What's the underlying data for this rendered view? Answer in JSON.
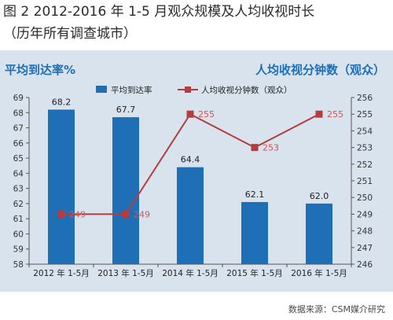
{
  "header": {
    "title": "图 2   2012-2016 年 1-5 月观众规模及人均收视时长",
    "subtitle": "（历年所有调查城市）"
  },
  "source": "数据来源：CSM媒介研究",
  "colors": {
    "bar": "#1f6fb7",
    "line": "#b53d3d",
    "label_line": "#d9534f",
    "panel": "#d8e3ee"
  },
  "chart_data": {
    "type": "bar",
    "categories": [
      "2012 年 1-5月",
      "2013 年 1-5月",
      "2014 年 1-5月",
      "2015 年 1-5月",
      "2016 年 1-5月"
    ],
    "ylabel": "平均到达率%",
    "y2label": "人均收视分钟数（观众）",
    "ylim": [
      58,
      69
    ],
    "y2lim": [
      246,
      256
    ],
    "yticks": [
      58,
      59,
      60,
      61,
      62,
      63,
      64,
      65,
      66,
      67,
      68,
      69
    ],
    "y2ticks": [
      246,
      247,
      248,
      249,
      250,
      251,
      252,
      253,
      254,
      255,
      256
    ],
    "series": [
      {
        "name": "平均到达率",
        "type": "bar",
        "axis": "left",
        "values": [
          68.2,
          67.7,
          64.4,
          62.1,
          62.0
        ],
        "labels": [
          "68.2",
          "67.7",
          "64.4",
          "62.1",
          "62.0"
        ]
      },
      {
        "name": "人均收视分钟数（观众）",
        "type": "line",
        "axis": "right",
        "values": [
          249,
          249,
          255,
          253,
          255
        ],
        "labels": [
          "249",
          "249",
          "255",
          "253",
          "255"
        ]
      }
    ],
    "legend_position": "top",
    "grid": false
  }
}
